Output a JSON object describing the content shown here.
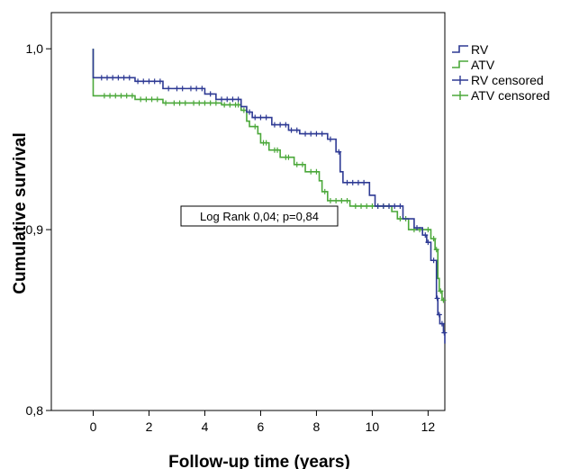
{
  "chart_data": {
    "type": "line",
    "subtype": "kaplan-meier",
    "xlabel": "Follow-up time (years)",
    "ylabel": "Cumulative survival",
    "xlim": [
      -1.5,
      12.6
    ],
    "ylim": [
      0.8,
      1.02
    ],
    "x_ticks": [
      {
        "value": 0,
        "label": "0"
      },
      {
        "value": 2,
        "label": "2"
      },
      {
        "value": 4,
        "label": "4"
      },
      {
        "value": 6,
        "label": "6"
      },
      {
        "value": 8,
        "label": "8"
      },
      {
        "value": 10,
        "label": "10"
      },
      {
        "value": 12,
        "label": "12"
      }
    ],
    "y_ticks": [
      {
        "value": 0.8,
        "label": "0,8"
      },
      {
        "value": 0.9,
        "label": "0,9"
      },
      {
        "value": 1.0,
        "label": "1,0"
      }
    ],
    "grid": false,
    "legend_position": "right",
    "annotation": "Log Rank 0,04; p=0,84",
    "series": [
      {
        "name": "RV",
        "color": "#2E3A94",
        "steps": [
          [
            0,
            1.0
          ],
          [
            0,
            0.984
          ],
          [
            1.5,
            0.982
          ],
          [
            2.5,
            0.978
          ],
          [
            4.0,
            0.975
          ],
          [
            4.4,
            0.972
          ],
          [
            5.3,
            0.968
          ],
          [
            5.5,
            0.965
          ],
          [
            5.7,
            0.962
          ],
          [
            6.4,
            0.958
          ],
          [
            7.0,
            0.955
          ],
          [
            7.4,
            0.953
          ],
          [
            8.4,
            0.95
          ],
          [
            8.7,
            0.943
          ],
          [
            8.85,
            0.932
          ],
          [
            8.95,
            0.926
          ],
          [
            9.9,
            0.919
          ],
          [
            10.1,
            0.913
          ],
          [
            11.1,
            0.906
          ],
          [
            11.5,
            0.901
          ],
          [
            11.8,
            0.897
          ],
          [
            11.95,
            0.893
          ],
          [
            12.1,
            0.883
          ],
          [
            12.3,
            0.862
          ],
          [
            12.35,
            0.853
          ],
          [
            12.42,
            0.848
          ],
          [
            12.55,
            0.843
          ],
          [
            12.6,
            0.837
          ]
        ],
        "censored": [
          0.3,
          0.5,
          0.7,
          0.9,
          1.1,
          1.3,
          1.6,
          1.8,
          2.0,
          2.2,
          2.4,
          2.7,
          3.0,
          3.2,
          3.5,
          3.7,
          3.9,
          4.2,
          4.6,
          4.8,
          5.0,
          5.2,
          5.6,
          5.8,
          6.0,
          6.2,
          6.5,
          6.7,
          6.9,
          7.1,
          7.3,
          7.6,
          7.8,
          8.0,
          8.2,
          8.5,
          8.8,
          9.1,
          9.3,
          9.5,
          9.7,
          10.2,
          10.4,
          10.6,
          10.8,
          11.0,
          11.6,
          11.9,
          12.0,
          12.2,
          12.33,
          12.4,
          12.5,
          12.58
        ]
      },
      {
        "name": "ATV",
        "color": "#4BA83A",
        "steps": [
          [
            0,
            1.0
          ],
          [
            0,
            0.974
          ],
          [
            1.5,
            0.972
          ],
          [
            2.5,
            0.97
          ],
          [
            4.6,
            0.969
          ],
          [
            5.3,
            0.966
          ],
          [
            5.5,
            0.96
          ],
          [
            5.6,
            0.957
          ],
          [
            5.9,
            0.953
          ],
          [
            6.0,
            0.948
          ],
          [
            6.3,
            0.944
          ],
          [
            6.7,
            0.94
          ],
          [
            7.2,
            0.936
          ],
          [
            7.6,
            0.932
          ],
          [
            8.1,
            0.927
          ],
          [
            8.2,
            0.921
          ],
          [
            8.4,
            0.916
          ],
          [
            9.2,
            0.913
          ],
          [
            10.7,
            0.91
          ],
          [
            10.9,
            0.906
          ],
          [
            11.3,
            0.9
          ],
          [
            12.1,
            0.895
          ],
          [
            12.25,
            0.889
          ],
          [
            12.35,
            0.873
          ],
          [
            12.4,
            0.866
          ],
          [
            12.5,
            0.861
          ]
        ],
        "censored": [
          0.4,
          0.6,
          0.8,
          1.0,
          1.2,
          1.4,
          1.7,
          1.9,
          2.1,
          2.3,
          2.6,
          2.9,
          3.1,
          3.3,
          3.6,
          3.8,
          4.0,
          4.2,
          4.4,
          4.7,
          4.9,
          5.1,
          5.2,
          5.4,
          5.8,
          6.1,
          6.2,
          6.5,
          6.6,
          6.9,
          7.0,
          7.3,
          7.5,
          7.8,
          8.0,
          8.3,
          8.5,
          8.7,
          8.9,
          9.1,
          9.4,
          9.6,
          9.8,
          10.0,
          10.2,
          10.4,
          10.6,
          11.0,
          11.2,
          11.5,
          11.7,
          12.0,
          12.2,
          12.3,
          12.45,
          12.55
        ]
      }
    ],
    "legend": [
      {
        "label": "RV",
        "kind": "line",
        "color": "#2E3A94"
      },
      {
        "label": "ATV",
        "kind": "line",
        "color": "#4BA83A"
      },
      {
        "label": "RV censored",
        "kind": "censor",
        "color": "#2E3A94"
      },
      {
        "label": "ATV censored",
        "kind": "censor",
        "color": "#4BA83A"
      }
    ]
  }
}
